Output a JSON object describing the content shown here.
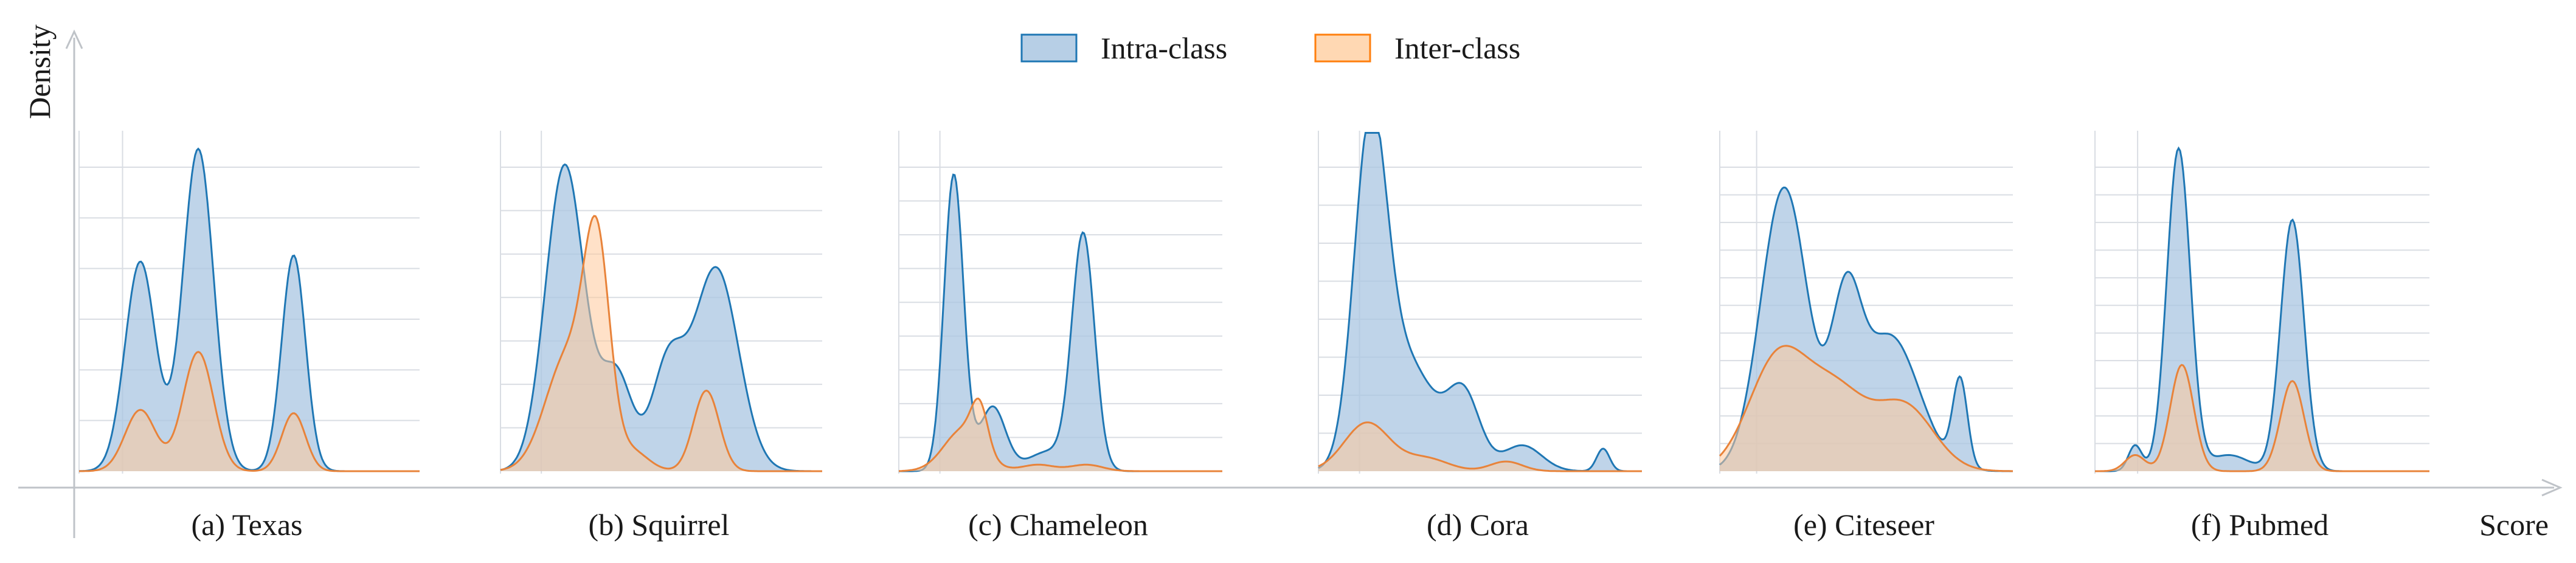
{
  "figure": {
    "y_axis_label": "Density",
    "x_axis_label": "Score"
  },
  "legend": {
    "items": [
      {
        "label": "Intra-class",
        "color": "#1f77b4",
        "fill": "#b7cfe6"
      },
      {
        "label": "Inter-class",
        "color": "#ff7f0e",
        "fill": "#ffd8b3"
      }
    ]
  },
  "chart_data": [
    {
      "type": "area",
      "title": "(a) Texas",
      "series": [
        {
          "name": "Intra-class",
          "components": [
            [
              0.18,
              0.045,
              0.65
            ],
            [
              0.35,
              0.045,
              1.0
            ],
            [
              0.63,
              0.035,
              0.67
            ]
          ]
        },
        {
          "name": "Inter-class",
          "components": [
            [
              0.18,
              0.045,
              0.19
            ],
            [
              0.35,
              0.045,
              0.37
            ],
            [
              0.63,
              0.035,
              0.18
            ]
          ]
        }
      ],
      "grid": true,
      "gridlines": 6
    },
    {
      "type": "area",
      "title": "(b) Squirrel",
      "series": [
        {
          "name": "Intra-class",
          "components": [
            [
              0.2,
              0.06,
              0.95
            ],
            [
              0.36,
              0.05,
              0.3
            ],
            [
              0.52,
              0.05,
              0.32
            ],
            [
              0.67,
              0.07,
              0.63
            ]
          ]
        },
        {
          "name": "Inter-class",
          "components": [
            [
              0.21,
              0.07,
              0.36
            ],
            [
              0.3,
              0.04,
              0.62
            ],
            [
              0.41,
              0.05,
              0.06
            ],
            [
              0.64,
              0.04,
              0.25
            ]
          ]
        }
      ],
      "grid": true,
      "gridlines": 7
    },
    {
      "type": "area",
      "title": "(c) Chameleon",
      "series": [
        {
          "name": "Intra-class",
          "components": [
            [
              0.17,
              0.03,
              0.92
            ],
            [
              0.29,
              0.04,
              0.2
            ],
            [
              0.46,
              0.06,
              0.06
            ],
            [
              0.57,
              0.035,
              0.73
            ]
          ]
        },
        {
          "name": "Inter-class",
          "components": [
            [
              0.2,
              0.06,
              0.13
            ],
            [
              0.25,
              0.025,
              0.13
            ],
            [
              0.43,
              0.05,
              0.02
            ],
            [
              0.58,
              0.05,
              0.02
            ]
          ]
        }
      ],
      "grid": true,
      "gridlines": 9
    },
    {
      "type": "area",
      "title": "(d) Cora",
      "series": [
        {
          "name": "Intra-class",
          "components": [
            [
              0.16,
              0.05,
              0.97
            ],
            [
              0.27,
              0.09,
              0.34
            ],
            [
              0.45,
              0.05,
              0.22
            ],
            [
              0.63,
              0.06,
              0.08
            ],
            [
              0.88,
              0.02,
              0.07
            ]
          ]
        },
        {
          "name": "Inter-class",
          "components": [
            [
              0.15,
              0.07,
              0.15
            ],
            [
              0.33,
              0.07,
              0.04
            ],
            [
              0.58,
              0.05,
              0.03
            ]
          ]
        }
      ],
      "grid": true,
      "gridlines": 8
    },
    {
      "type": "area",
      "title": "(e) Citeseer",
      "series": [
        {
          "name": "Intra-class",
          "components": [
            [
              0.22,
              0.08,
              0.88
            ],
            [
              0.43,
              0.05,
              0.45
            ],
            [
              0.58,
              0.1,
              0.42
            ],
            [
              0.82,
              0.025,
              0.27
            ]
          ]
        },
        {
          "name": "Inter-class",
          "components": [
            [
              0.2,
              0.1,
              0.35
            ],
            [
              0.4,
              0.1,
              0.23
            ],
            [
              0.63,
              0.1,
              0.2
            ]
          ]
        }
      ],
      "grid": true,
      "gridlines": 11
    },
    {
      "type": "area",
      "title": "(f) Pubmed",
      "series": [
        {
          "name": "Intra-class",
          "components": [
            [
              0.12,
              0.02,
              0.08
            ],
            [
              0.25,
              0.035,
              1.0
            ],
            [
              0.4,
              0.06,
              0.05
            ],
            [
              0.59,
              0.035,
              0.78
            ]
          ]
        },
        {
          "name": "Inter-class",
          "components": [
            [
              0.12,
              0.03,
              0.05
            ],
            [
              0.26,
              0.035,
              0.33
            ],
            [
              0.59,
              0.035,
              0.28
            ]
          ]
        }
      ],
      "grid": true,
      "gridlines": 11
    }
  ]
}
